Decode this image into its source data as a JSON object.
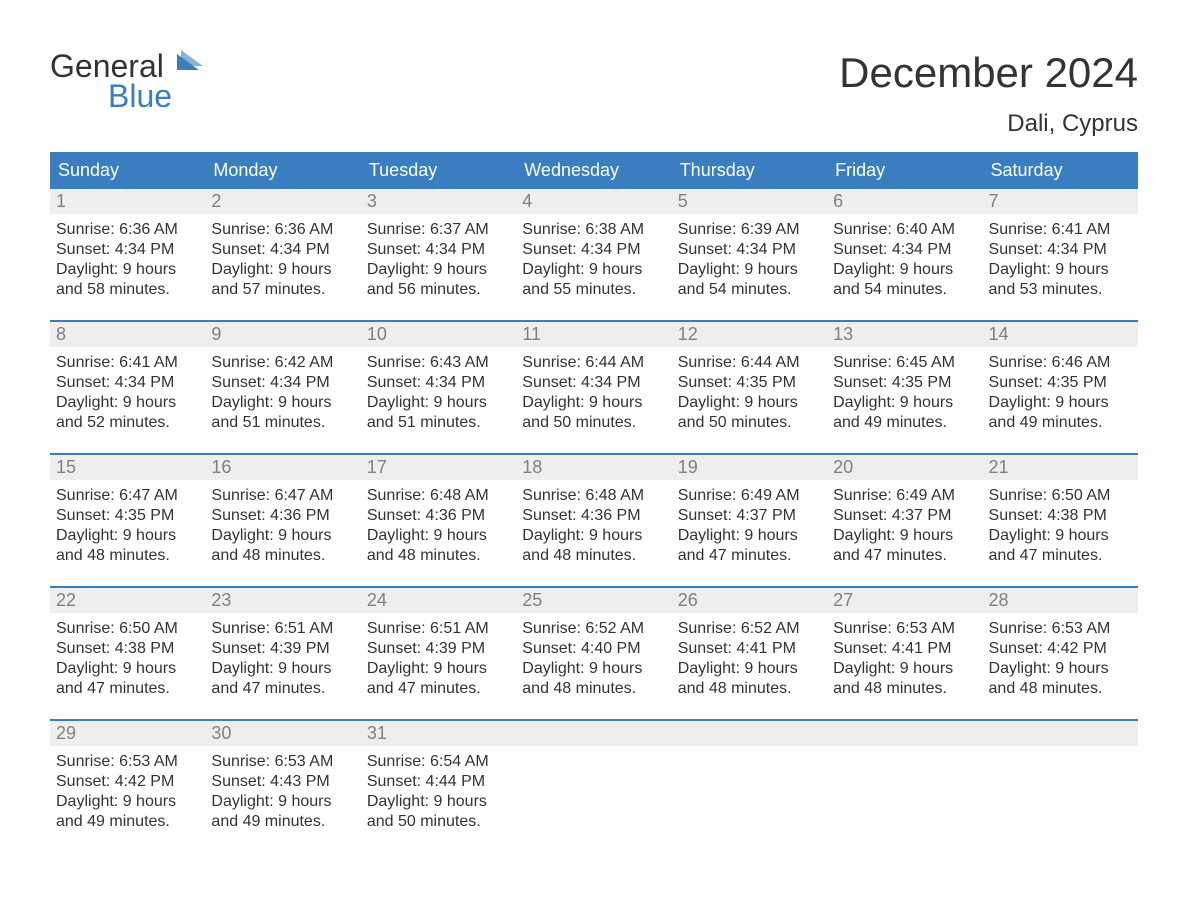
{
  "logo": {
    "part1": "General",
    "part2": "Blue"
  },
  "title": "December 2024",
  "subtitle": "Dali, Cyprus",
  "colors": {
    "header_bg": "#3a7ebf",
    "header_text": "#ffffff",
    "numrow_bg": "#eeeeee",
    "num_text": "#808080",
    "body_text": "#333333",
    "week_border": "#3a7ebf",
    "page_bg": "#ffffff"
  },
  "typography": {
    "title_fontsize": 42,
    "subtitle_fontsize": 24,
    "header_fontsize": 18,
    "daynum_fontsize": 18,
    "body_fontsize": 16,
    "font_family": "Arial"
  },
  "calendar": {
    "type": "table",
    "columns": [
      "Sunday",
      "Monday",
      "Tuesday",
      "Wednesday",
      "Thursday",
      "Friday",
      "Saturday"
    ],
    "weeks": [
      [
        {
          "n": "1",
          "sunrise": "Sunrise: 6:36 AM",
          "sunset": "Sunset: 4:34 PM",
          "d1": "Daylight: 9 hours",
          "d2": "and 58 minutes."
        },
        {
          "n": "2",
          "sunrise": "Sunrise: 6:36 AM",
          "sunset": "Sunset: 4:34 PM",
          "d1": "Daylight: 9 hours",
          "d2": "and 57 minutes."
        },
        {
          "n": "3",
          "sunrise": "Sunrise: 6:37 AM",
          "sunset": "Sunset: 4:34 PM",
          "d1": "Daylight: 9 hours",
          "d2": "and 56 minutes."
        },
        {
          "n": "4",
          "sunrise": "Sunrise: 6:38 AM",
          "sunset": "Sunset: 4:34 PM",
          "d1": "Daylight: 9 hours",
          "d2": "and 55 minutes."
        },
        {
          "n": "5",
          "sunrise": "Sunrise: 6:39 AM",
          "sunset": "Sunset: 4:34 PM",
          "d1": "Daylight: 9 hours",
          "d2": "and 54 minutes."
        },
        {
          "n": "6",
          "sunrise": "Sunrise: 6:40 AM",
          "sunset": "Sunset: 4:34 PM",
          "d1": "Daylight: 9 hours",
          "d2": "and 54 minutes."
        },
        {
          "n": "7",
          "sunrise": "Sunrise: 6:41 AM",
          "sunset": "Sunset: 4:34 PM",
          "d1": "Daylight: 9 hours",
          "d2": "and 53 minutes."
        }
      ],
      [
        {
          "n": "8",
          "sunrise": "Sunrise: 6:41 AM",
          "sunset": "Sunset: 4:34 PM",
          "d1": "Daylight: 9 hours",
          "d2": "and 52 minutes."
        },
        {
          "n": "9",
          "sunrise": "Sunrise: 6:42 AM",
          "sunset": "Sunset: 4:34 PM",
          "d1": "Daylight: 9 hours",
          "d2": "and 51 minutes."
        },
        {
          "n": "10",
          "sunrise": "Sunrise: 6:43 AM",
          "sunset": "Sunset: 4:34 PM",
          "d1": "Daylight: 9 hours",
          "d2": "and 51 minutes."
        },
        {
          "n": "11",
          "sunrise": "Sunrise: 6:44 AM",
          "sunset": "Sunset: 4:34 PM",
          "d1": "Daylight: 9 hours",
          "d2": "and 50 minutes."
        },
        {
          "n": "12",
          "sunrise": "Sunrise: 6:44 AM",
          "sunset": "Sunset: 4:35 PM",
          "d1": "Daylight: 9 hours",
          "d2": "and 50 minutes."
        },
        {
          "n": "13",
          "sunrise": "Sunrise: 6:45 AM",
          "sunset": "Sunset: 4:35 PM",
          "d1": "Daylight: 9 hours",
          "d2": "and 49 minutes."
        },
        {
          "n": "14",
          "sunrise": "Sunrise: 6:46 AM",
          "sunset": "Sunset: 4:35 PM",
          "d1": "Daylight: 9 hours",
          "d2": "and 49 minutes."
        }
      ],
      [
        {
          "n": "15",
          "sunrise": "Sunrise: 6:47 AM",
          "sunset": "Sunset: 4:35 PM",
          "d1": "Daylight: 9 hours",
          "d2": "and 48 minutes."
        },
        {
          "n": "16",
          "sunrise": "Sunrise: 6:47 AM",
          "sunset": "Sunset: 4:36 PM",
          "d1": "Daylight: 9 hours",
          "d2": "and 48 minutes."
        },
        {
          "n": "17",
          "sunrise": "Sunrise: 6:48 AM",
          "sunset": "Sunset: 4:36 PM",
          "d1": "Daylight: 9 hours",
          "d2": "and 48 minutes."
        },
        {
          "n": "18",
          "sunrise": "Sunrise: 6:48 AM",
          "sunset": "Sunset: 4:36 PM",
          "d1": "Daylight: 9 hours",
          "d2": "and 48 minutes."
        },
        {
          "n": "19",
          "sunrise": "Sunrise: 6:49 AM",
          "sunset": "Sunset: 4:37 PM",
          "d1": "Daylight: 9 hours",
          "d2": "and 47 minutes."
        },
        {
          "n": "20",
          "sunrise": "Sunrise: 6:49 AM",
          "sunset": "Sunset: 4:37 PM",
          "d1": "Daylight: 9 hours",
          "d2": "and 47 minutes."
        },
        {
          "n": "21",
          "sunrise": "Sunrise: 6:50 AM",
          "sunset": "Sunset: 4:38 PM",
          "d1": "Daylight: 9 hours",
          "d2": "and 47 minutes."
        }
      ],
      [
        {
          "n": "22",
          "sunrise": "Sunrise: 6:50 AM",
          "sunset": "Sunset: 4:38 PM",
          "d1": "Daylight: 9 hours",
          "d2": "and 47 minutes."
        },
        {
          "n": "23",
          "sunrise": "Sunrise: 6:51 AM",
          "sunset": "Sunset: 4:39 PM",
          "d1": "Daylight: 9 hours",
          "d2": "and 47 minutes."
        },
        {
          "n": "24",
          "sunrise": "Sunrise: 6:51 AM",
          "sunset": "Sunset: 4:39 PM",
          "d1": "Daylight: 9 hours",
          "d2": "and 47 minutes."
        },
        {
          "n": "25",
          "sunrise": "Sunrise: 6:52 AM",
          "sunset": "Sunset: 4:40 PM",
          "d1": "Daylight: 9 hours",
          "d2": "and 48 minutes."
        },
        {
          "n": "26",
          "sunrise": "Sunrise: 6:52 AM",
          "sunset": "Sunset: 4:41 PM",
          "d1": "Daylight: 9 hours",
          "d2": "and 48 minutes."
        },
        {
          "n": "27",
          "sunrise": "Sunrise: 6:53 AM",
          "sunset": "Sunset: 4:41 PM",
          "d1": "Daylight: 9 hours",
          "d2": "and 48 minutes."
        },
        {
          "n": "28",
          "sunrise": "Sunrise: 6:53 AM",
          "sunset": "Sunset: 4:42 PM",
          "d1": "Daylight: 9 hours",
          "d2": "and 48 minutes."
        }
      ],
      [
        {
          "n": "29",
          "sunrise": "Sunrise: 6:53 AM",
          "sunset": "Sunset: 4:42 PM",
          "d1": "Daylight: 9 hours",
          "d2": "and 49 minutes."
        },
        {
          "n": "30",
          "sunrise": "Sunrise: 6:53 AM",
          "sunset": "Sunset: 4:43 PM",
          "d1": "Daylight: 9 hours",
          "d2": "and 49 minutes."
        },
        {
          "n": "31",
          "sunrise": "Sunrise: 6:54 AM",
          "sunset": "Sunset: 4:44 PM",
          "d1": "Daylight: 9 hours",
          "d2": "and 50 minutes."
        },
        null,
        null,
        null,
        null
      ]
    ]
  }
}
